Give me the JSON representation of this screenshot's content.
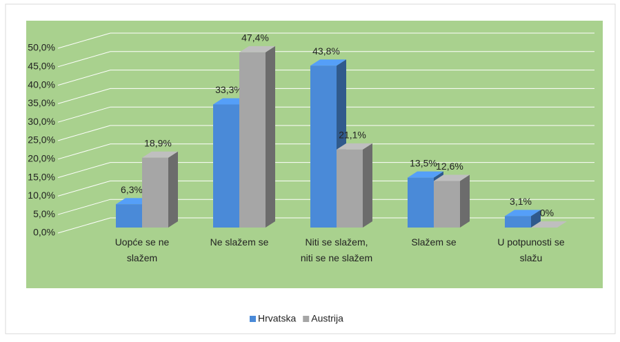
{
  "chart_data": {
    "type": "bar3d",
    "categories": [
      "Uopće se ne slažem",
      "Ne slažem se",
      "Niti se slažem, niti se ne slažem",
      "Slažem se",
      "U potpunosti se slažu"
    ],
    "series": [
      {
        "name": "Hrvatska",
        "color": "#4a8ad8",
        "values": [
          6.3,
          33.3,
          43.8,
          13.5,
          3.1
        ],
        "value_labels": [
          "6,3%",
          "33,3%",
          "43,8%",
          "13,5%",
          "3,1%"
        ]
      },
      {
        "name": "Austrija",
        "color": "#a6a6a6",
        "values": [
          18.9,
          47.4,
          21.1,
          12.6,
          0
        ],
        "value_labels": [
          "18,9%",
          "47,4%",
          "21,1%",
          "12,6%",
          "0%"
        ]
      }
    ],
    "ylim": [
      0,
      50
    ],
    "yticks": [
      {
        "value": 0,
        "label": "0,0%"
      },
      {
        "value": 5,
        "label": "5,0%"
      },
      {
        "value": 10,
        "label": "10,0%"
      },
      {
        "value": 15,
        "label": "15,0%"
      },
      {
        "value": 20,
        "label": "20,0%"
      },
      {
        "value": 25,
        "label": "25,0%"
      },
      {
        "value": 30,
        "label": "30,0%"
      },
      {
        "value": 35,
        "label": "35,0%"
      },
      {
        "value": 40,
        "label": "40,0%"
      },
      {
        "value": 45,
        "label": "45,0%"
      },
      {
        "value": 50,
        "label": "50,0%"
      }
    ],
    "grid": true,
    "legend": "bottom"
  }
}
